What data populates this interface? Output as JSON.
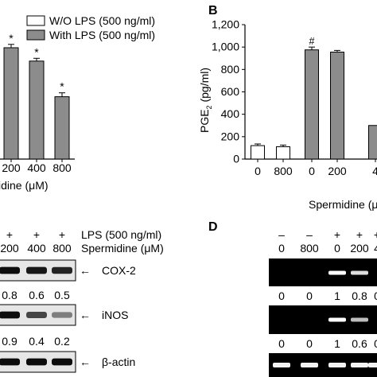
{
  "panel_letters": {
    "b": "B",
    "d": "D"
  },
  "legend": {
    "without": "W/O LPS (500 ng/ml)",
    "with": "With LPS (500 ng/ml)"
  },
  "colors": {
    "without_fill": "#ffffff",
    "with_fill": "#8c8c8c",
    "stroke": "#000000"
  },
  "chart_data": [
    {
      "panel": "A",
      "type": "bar",
      "categories": [
        "",
        "200",
        "400",
        "800"
      ],
      "series": [
        {
          "name": "With LPS (500 ng/ml)",
          "values": [
            1020,
            1000,
            880,
            560
          ],
          "errors": [
            30,
            30,
            25,
            35
          ],
          "marks": [
            "",
            "*",
            "*",
            "*"
          ]
        }
      ],
      "xlabel": "idine (μM)"
    },
    {
      "panel": "B",
      "type": "bar",
      "categories": [
        "0",
        "800",
        "0",
        "200",
        "4"
      ],
      "series": [
        {
          "name": "W/O LPS (500 ng/ml)",
          "values": [
            120,
            110,
            null,
            null,
            null
          ],
          "errors": [
            15,
            15,
            null,
            null,
            null
          ]
        },
        {
          "name": "With LPS (500 ng/ml)",
          "values": [
            null,
            null,
            975,
            955,
            300
          ],
          "errors": [
            null,
            null,
            25,
            15,
            null
          ],
          "marks": [
            "",
            "",
            "#",
            "",
            ""
          ]
        }
      ],
      "ylabel_main": "PGE",
      "ylabel_sub": "2",
      "ylabel_tail": " (pg/ml)",
      "ylim": [
        0,
        1200
      ],
      "yticks": [
        "0",
        "200",
        "400",
        "600",
        "800",
        "1,000",
        "1,200"
      ],
      "xlabel": "Spermidine (μ"
    }
  ],
  "panel_c": {
    "lps_row": [
      "+",
      "+",
      "+"
    ],
    "lps_label": "LPS (500 ng/ml)",
    "sper_row": [
      "200",
      "400",
      "800"
    ],
    "sper_label": "Spermidine (μM)",
    "bands": [
      {
        "label": "COX-2",
        "ratios": [
          "0.8",
          "0.6",
          "0.5"
        ],
        "intensity": [
          0.95,
          0.9,
          0.85
        ]
      },
      {
        "label": "iNOS",
        "ratios": [
          "0.9",
          "0.4",
          "0.2"
        ],
        "intensity": [
          0.95,
          0.7,
          0.45
        ]
      },
      {
        "label": "β-actin",
        "ratios": [],
        "intensity": [
          0.95,
          0.95,
          0.95
        ]
      }
    ],
    "arrow": "←"
  },
  "panel_d": {
    "lps_row": [
      "–",
      "–",
      "+",
      "+",
      "+"
    ],
    "sper_row": [
      "0",
      "800",
      "0",
      "200",
      "4"
    ],
    "ratios_1": [
      "0",
      "0",
      "1",
      "0.8",
      "0"
    ],
    "ratios_2": [
      "0",
      "0",
      "1",
      "0.6",
      "0"
    ]
  }
}
